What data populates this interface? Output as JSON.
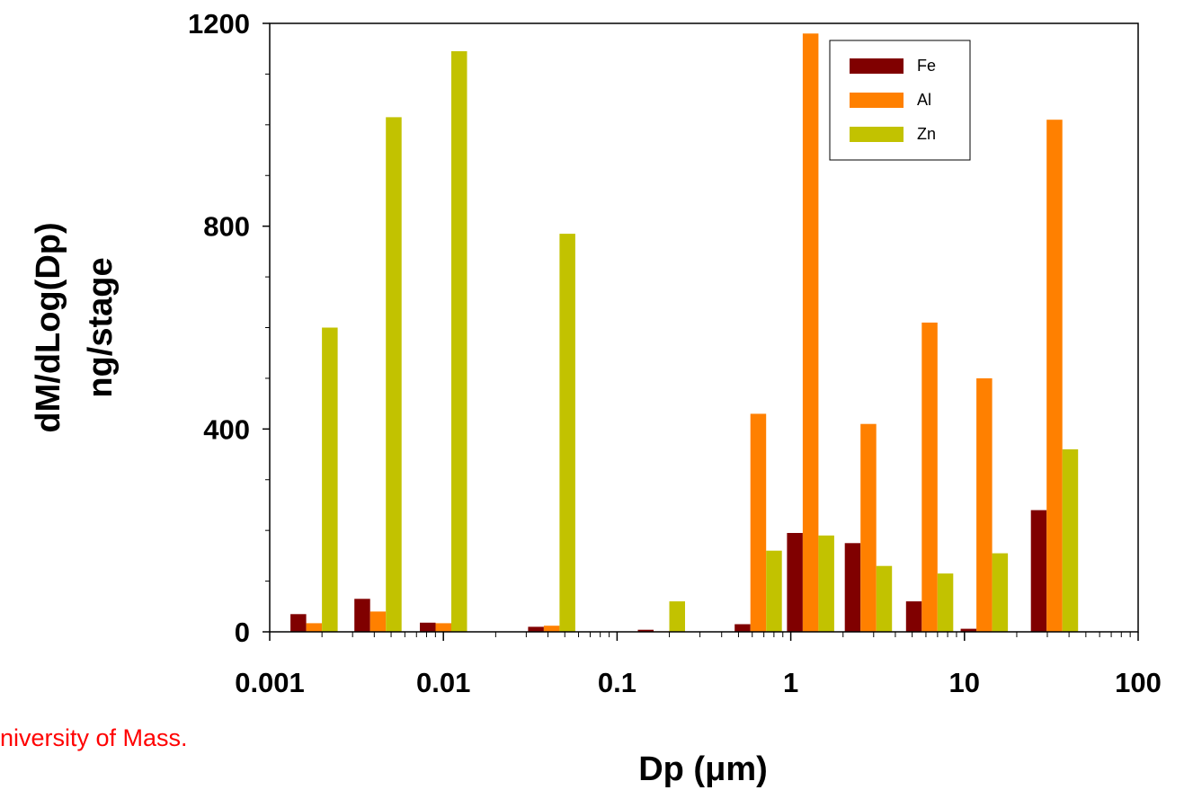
{
  "chart_data": {
    "type": "bar",
    "title": "",
    "xlabel": "Dp (μm)",
    "ylabel_lines": [
      "dM/dLog(Dp)",
      "ng/stage"
    ],
    "x_scale": "log",
    "xlim": [
      0.001,
      100
    ],
    "ylim": [
      0,
      1200
    ],
    "x_tick_labels": [
      "0.001",
      "0.01",
      "0.1",
      "1",
      "10",
      "100"
    ],
    "x_tick_values": [
      0.001,
      0.01,
      0.1,
      1,
      10,
      100
    ],
    "y_tick_labels": [
      "0",
      "400",
      "800",
      "1200"
    ],
    "y_tick_values": [
      0,
      400,
      800,
      1200
    ],
    "grid": false,
    "legend_position": "top-right",
    "bin_centers_um": [
      0.0018,
      0.0042,
      0.01,
      0.042,
      0.18,
      0.65,
      1.3,
      2.8,
      6.3,
      13,
      33
    ],
    "series": [
      {
        "name": "Fe",
        "color": "#800000",
        "values": [
          35,
          65,
          18,
          10,
          4,
          15,
          195,
          175,
          60,
          6,
          240
        ]
      },
      {
        "name": "Al",
        "color": "#ff8000",
        "values": [
          17,
          40,
          17,
          12,
          1,
          430,
          1180,
          410,
          610,
          500,
          1010
        ]
      },
      {
        "name": "Zn",
        "color": "#c2c200",
        "values": [
          600,
          1015,
          1145,
          785,
          60,
          160,
          190,
          130,
          115,
          155,
          360
        ]
      }
    ]
  },
  "credit_text": "niversity of Mass."
}
